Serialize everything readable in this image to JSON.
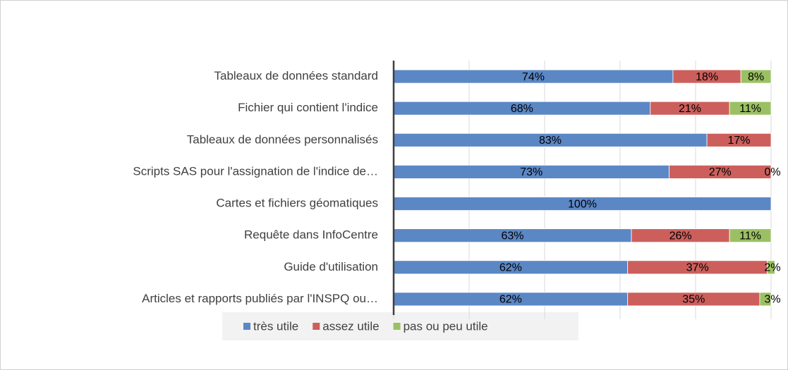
{
  "chart_data": {
    "type": "stacked_barh",
    "categories": [
      "Tableaux de données standard",
      "Fichier qui contient l'indice",
      "Tableaux de données personnalisés",
      "Scripts SAS pour l'assignation de l'indice de…",
      "Cartes et fichiers géomatiques",
      "Requête dans InfoCentre",
      "Guide d'utilisation",
      "Articles et rapports publiés par l'INSPQ ou…"
    ],
    "series": [
      {
        "name": "très utile",
        "color": "#5b87c5",
        "values": [
          74,
          68,
          83,
          73,
          100,
          63,
          62,
          62
        ],
        "value_labels": [
          "74%",
          "68%",
          "83%",
          "73%",
          "100%",
          "63%",
          "62%",
          "62%"
        ]
      },
      {
        "name": "assez utile",
        "color": "#cc5f5c",
        "values": [
          18,
          21,
          17,
          27,
          null,
          26,
          37,
          35
        ],
        "value_labels": [
          "18%",
          "21%",
          "17%",
          "27%",
          null,
          "26%",
          "37%",
          "35%"
        ]
      },
      {
        "name": "pas ou peu utile",
        "color": "#9bc063",
        "values": [
          8,
          11,
          null,
          0,
          null,
          11,
          2,
          3
        ],
        "value_labels": [
          "8%",
          "11%",
          null,
          "0%",
          null,
          "11%",
          "2%",
          "3%"
        ]
      }
    ],
    "xlim": [
      0,
      100
    ],
    "xticks": [
      0,
      20,
      40,
      60,
      80,
      100
    ],
    "grid": true,
    "legend": "bottom"
  }
}
